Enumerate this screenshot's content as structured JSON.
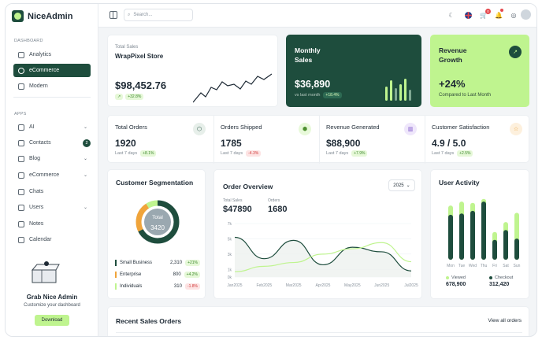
{
  "brand": {
    "name": "NiceAdmin"
  },
  "sidebar": {
    "dashboard_label": "DASHBOARD",
    "dashboard_items": [
      {
        "label": "Analytics",
        "icon": "analytics-icon"
      },
      {
        "label": "eCommerce",
        "icon": "ecommerce-icon",
        "active": true
      },
      {
        "label": "Modern",
        "icon": "modern-icon"
      }
    ],
    "apps_label": "APPS",
    "apps_items": [
      {
        "label": "AI",
        "icon": "ai-icon",
        "chevron": true
      },
      {
        "label": "Contacts",
        "icon": "contacts-icon",
        "badge": "2"
      },
      {
        "label": "Blog",
        "icon": "blog-icon",
        "chevron": true
      },
      {
        "label": "eCommerce",
        "icon": "cart-icon",
        "chevron": true
      },
      {
        "label": "Chats",
        "icon": "chat-icon"
      },
      {
        "label": "Users",
        "icon": "users-icon",
        "chevron": true
      },
      {
        "label": "Notes",
        "icon": "notes-icon"
      },
      {
        "label": "Calendar",
        "icon": "calendar-icon"
      }
    ],
    "promo": {
      "title": "Grab Nice Admin",
      "subtitle": "Customize your dashboard",
      "button": "Download"
    }
  },
  "topbar": {
    "search_placeholder": "Search...",
    "cart_count": "0"
  },
  "sales_card": {
    "label": "Total Sales",
    "store": "WrapPixel Store",
    "value": "$98,452.76",
    "change": "+32.8%"
  },
  "monthly_card": {
    "title_line1": "Monthly",
    "title_line2": "Sales",
    "value": "$36,890",
    "sub": "vs last month",
    "change": "+18.4%"
  },
  "revenue_card": {
    "title_line1": "Revenue",
    "title_line2": "Growth",
    "value": "+24%",
    "sub": "Compared to Last Month"
  },
  "stats": [
    {
      "title": "Total Orders",
      "value": "1920",
      "period": "Last 7 days",
      "change": "+8.1%",
      "trend": "up",
      "icon": "orders-icon"
    },
    {
      "title": "Orders Shipped",
      "value": "1785",
      "period": "Last 7 days",
      "change": "-4.3%",
      "trend": "down",
      "icon": "shipped-icon"
    },
    {
      "title": "Revenue Generated",
      "value": "$88,900",
      "period": "Last 7 days",
      "change": "+7.9%",
      "trend": "up",
      "icon": "revenue-icon"
    },
    {
      "title": "Customer Satisfaction",
      "value": "4.9 / 5.0",
      "period": "Last 7 days",
      "change": "+2.5%",
      "trend": "up",
      "icon": "satisfaction-icon"
    }
  ],
  "segmentation": {
    "title": "Customer Segmentation",
    "center_label": "Total",
    "center_value": "3420",
    "rows": [
      {
        "name": "Small Business",
        "value": "2,310",
        "change": "+21%",
        "trend": "up",
        "color": "#1e4d3d"
      },
      {
        "name": "Enterprise",
        "value": "800",
        "change": "+4.2%",
        "trend": "up",
        "color": "#f0a43a"
      },
      {
        "name": "Individuals",
        "value": "310",
        "change": "-1.8%",
        "trend": "down",
        "color": "#bff48f"
      }
    ]
  },
  "order_overview": {
    "title": "Order Overview",
    "year": "2025",
    "total_sales_label": "Total Sales",
    "total_sales_value": "$47890",
    "orders_label": "Orders",
    "orders_value": "1680"
  },
  "user_activity": {
    "title": "User Activity",
    "legend_viewed": "Viewed",
    "viewed_value": "678,900",
    "legend_checkout": "Checkout",
    "checkout_value": "312,420"
  },
  "recent_orders": {
    "title": "Recent Sales Orders",
    "link": "View all orders"
  },
  "chart_data": [
    {
      "type": "line",
      "title": "Order Overview",
      "x": [
        "Jan2025",
        "Feb2025",
        "Mar2025",
        "Apr2025",
        "May2025",
        "Jun2025",
        "Jul2025"
      ],
      "yticks": [
        "0k",
        "1k",
        "3k",
        "5k",
        "7k"
      ],
      "ylim": [
        0,
        7
      ],
      "series": [
        {
          "color": "#1e4d3d",
          "values": [
            5.2,
            2.4,
            4.8,
            1.6,
            3.9,
            3.3,
            0.8
          ]
        },
        {
          "color": "#bff48f",
          "values": [
            0.7,
            1.4,
            1.9,
            3.0,
            3.7,
            4.5,
            2.0
          ]
        }
      ],
      "grid": true
    },
    {
      "type": "bar",
      "title": "User Activity",
      "categories": [
        "Mon",
        "Tue",
        "Wed",
        "Thu",
        "Fri",
        "Sat",
        "Sun"
      ],
      "series": [
        {
          "name": "Viewed",
          "color": "#bff48f",
          "values": [
            82,
            88,
            86,
            92,
            42,
            57,
            71
          ]
        },
        {
          "name": "Checkout",
          "color": "#1e4d3d",
          "values": [
            68,
            70,
            74,
            88,
            30,
            45,
            32
          ]
        }
      ],
      "ylim": [
        0,
        100
      ]
    },
    {
      "type": "pie",
      "title": "Customer Segmentation",
      "labels": [
        "Small Business",
        "Enterprise",
        "Individuals"
      ],
      "values": [
        2310,
        800,
        310
      ]
    }
  ]
}
